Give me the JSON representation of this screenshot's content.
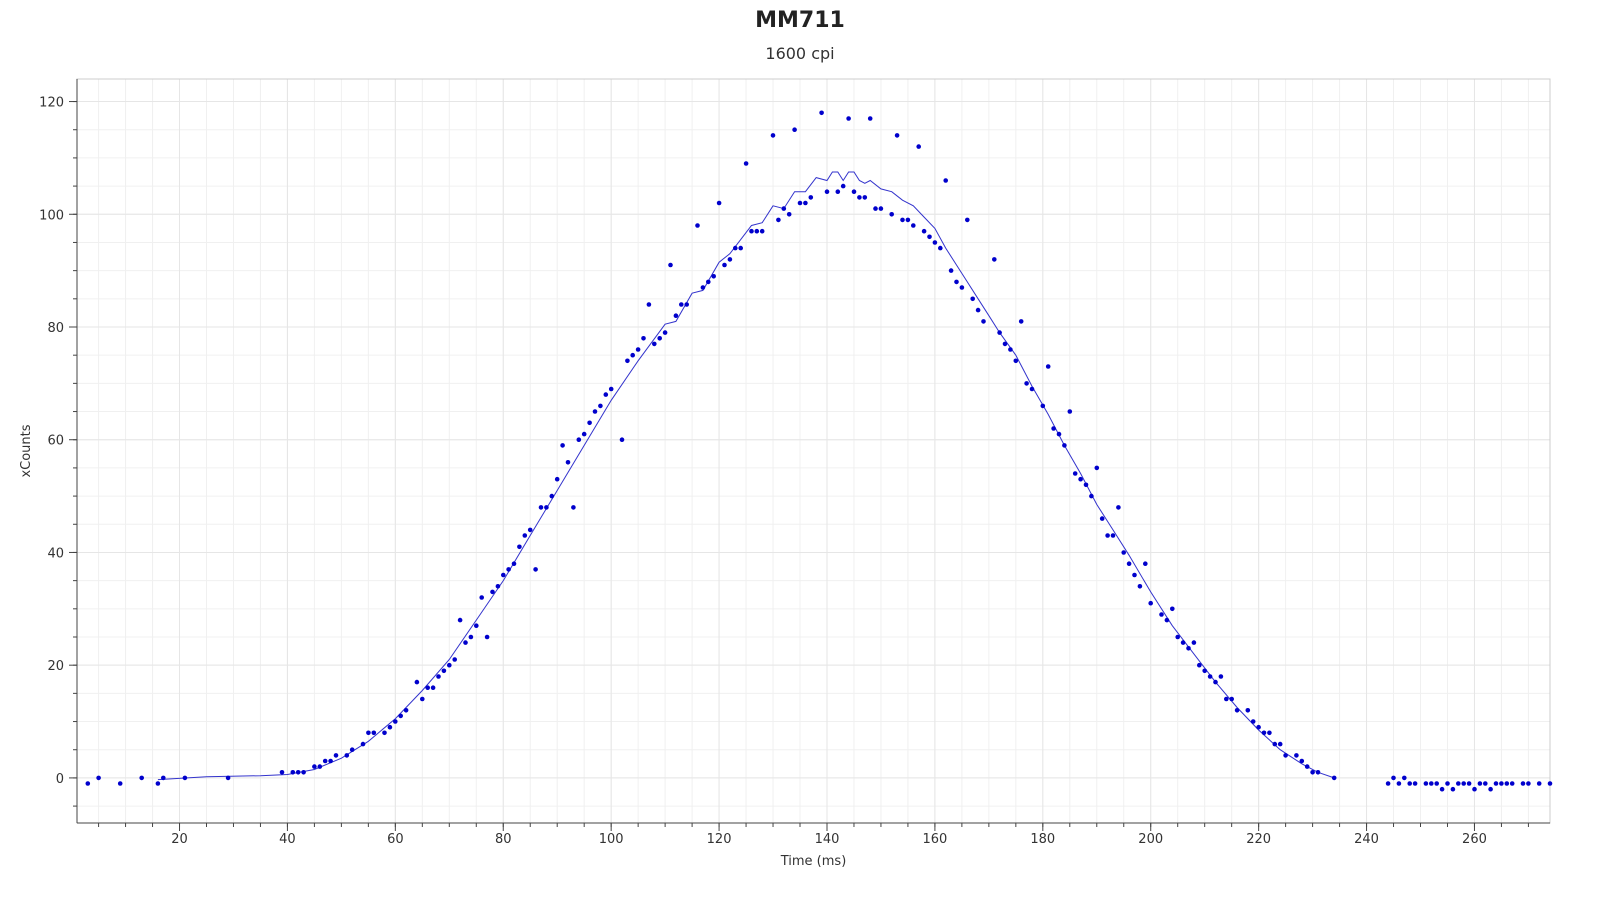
{
  "chart_data": {
    "type": "scatter",
    "title": "MM711",
    "subtitle": "1600 cpi",
    "xlabel": "Time (ms)",
    "ylabel": "xCounts",
    "xlim": [
      1,
      274
    ],
    "ylim": [
      -8,
      124
    ],
    "x_ticks": [
      20,
      40,
      60,
      80,
      100,
      120,
      140,
      160,
      180,
      200,
      220,
      240,
      260
    ],
    "y_ticks": [
      0,
      20,
      40,
      60,
      80,
      100,
      120
    ],
    "grid": true,
    "legend": "none",
    "colors": {
      "points": "#0000cc",
      "line": "#3333cc",
      "grid": "#e6e6e6",
      "axis": "#444444"
    },
    "series": [
      {
        "kind": "points",
        "points": [
          [
            3,
            -1
          ],
          [
            5,
            0
          ],
          [
            9,
            -1
          ],
          [
            13,
            0
          ],
          [
            16,
            -1
          ],
          [
            17,
            0
          ],
          [
            21,
            0
          ],
          [
            29,
            0
          ],
          [
            39,
            1
          ],
          [
            41,
            1
          ],
          [
            42,
            1
          ],
          [
            43,
            1
          ],
          [
            45,
            2
          ],
          [
            46,
            2
          ],
          [
            47,
            3
          ],
          [
            48,
            3
          ],
          [
            49,
            4
          ],
          [
            51,
            4
          ],
          [
            52,
            5
          ],
          [
            54,
            6
          ],
          [
            55,
            8
          ],
          [
            56,
            8
          ],
          [
            58,
            8
          ],
          [
            59,
            9
          ],
          [
            60,
            10
          ],
          [
            61,
            11
          ],
          [
            62,
            12
          ],
          [
            64,
            17
          ],
          [
            65,
            14
          ],
          [
            66,
            16
          ],
          [
            67,
            16
          ],
          [
            68,
            18
          ],
          [
            69,
            19
          ],
          [
            70,
            20
          ],
          [
            71,
            21
          ],
          [
            72,
            28
          ],
          [
            73,
            24
          ],
          [
            74,
            25
          ],
          [
            75,
            27
          ],
          [
            76,
            32
          ],
          [
            77,
            25
          ],
          [
            78,
            33
          ],
          [
            79,
            34
          ],
          [
            80,
            36
          ],
          [
            81,
            37
          ],
          [
            82,
            38
          ],
          [
            83,
            41
          ],
          [
            84,
            43
          ],
          [
            85,
            44
          ],
          [
            86,
            37
          ],
          [
            87,
            48
          ],
          [
            88,
            48
          ],
          [
            89,
            50
          ],
          [
            90,
            53
          ],
          [
            91,
            59
          ],
          [
            92,
            56
          ],
          [
            93,
            48
          ],
          [
            94,
            60
          ],
          [
            95,
            61
          ],
          [
            96,
            63
          ],
          [
            97,
            65
          ],
          [
            98,
            66
          ],
          [
            99,
            68
          ],
          [
            100,
            69
          ],
          [
            102,
            60
          ],
          [
            103,
            74
          ],
          [
            104,
            75
          ],
          [
            105,
            76
          ],
          [
            106,
            78
          ],
          [
            107,
            84
          ],
          [
            108,
            77
          ],
          [
            109,
            78
          ],
          [
            110,
            79
          ],
          [
            111,
            91
          ],
          [
            112,
            82
          ],
          [
            113,
            84
          ],
          [
            114,
            84
          ],
          [
            116,
            98
          ],
          [
            117,
            87
          ],
          [
            118,
            88
          ],
          [
            119,
            89
          ],
          [
            120,
            102
          ],
          [
            121,
            91
          ],
          [
            122,
            92
          ],
          [
            123,
            94
          ],
          [
            124,
            94
          ],
          [
            125,
            109
          ],
          [
            126,
            97
          ],
          [
            127,
            97
          ],
          [
            128,
            97
          ],
          [
            130,
            114
          ],
          [
            131,
            99
          ],
          [
            132,
            101
          ],
          [
            133,
            100
          ],
          [
            134,
            115
          ],
          [
            135,
            102
          ],
          [
            136,
            102
          ],
          [
            137,
            103
          ],
          [
            139,
            118
          ],
          [
            140,
            104
          ],
          [
            142,
            104
          ],
          [
            143,
            105
          ],
          [
            144,
            117
          ],
          [
            145,
            104
          ],
          [
            146,
            103
          ],
          [
            147,
            103
          ],
          [
            148,
            117
          ],
          [
            149,
            101
          ],
          [
            150,
            101
          ],
          [
            152,
            100
          ],
          [
            153,
            114
          ],
          [
            154,
            99
          ],
          [
            155,
            99
          ],
          [
            156,
            98
          ],
          [
            157,
            112
          ],
          [
            158,
            97
          ],
          [
            159,
            96
          ],
          [
            160,
            95
          ],
          [
            161,
            94
          ],
          [
            162,
            106
          ],
          [
            163,
            90
          ],
          [
            164,
            88
          ],
          [
            165,
            87
          ],
          [
            166,
            99
          ],
          [
            167,
            85
          ],
          [
            168,
            83
          ],
          [
            169,
            81
          ],
          [
            171,
            92
          ],
          [
            172,
            79
          ],
          [
            173,
            77
          ],
          [
            174,
            76
          ],
          [
            175,
            74
          ],
          [
            176,
            81
          ],
          [
            177,
            70
          ],
          [
            178,
            69
          ],
          [
            180,
            66
          ],
          [
            181,
            73
          ],
          [
            182,
            62
          ],
          [
            183,
            61
          ],
          [
            184,
            59
          ],
          [
            185,
            65
          ],
          [
            186,
            54
          ],
          [
            187,
            53
          ],
          [
            188,
            52
          ],
          [
            189,
            50
          ],
          [
            190,
            55
          ],
          [
            191,
            46
          ],
          [
            192,
            43
          ],
          [
            193,
            43
          ],
          [
            194,
            48
          ],
          [
            195,
            40
          ],
          [
            196,
            38
          ],
          [
            197,
            36
          ],
          [
            198,
            34
          ],
          [
            199,
            38
          ],
          [
            200,
            31
          ],
          [
            202,
            29
          ],
          [
            203,
            28
          ],
          [
            204,
            30
          ],
          [
            205,
            25
          ],
          [
            206,
            24
          ],
          [
            207,
            23
          ],
          [
            208,
            24
          ],
          [
            209,
            20
          ],
          [
            210,
            19
          ],
          [
            211,
            18
          ],
          [
            212,
            17
          ],
          [
            213,
            18
          ],
          [
            214,
            14
          ],
          [
            215,
            14
          ],
          [
            216,
            12
          ],
          [
            218,
            12
          ],
          [
            219,
            10
          ],
          [
            220,
            9
          ],
          [
            221,
            8
          ],
          [
            222,
            8
          ],
          [
            223,
            6
          ],
          [
            224,
            6
          ],
          [
            225,
            4
          ],
          [
            227,
            4
          ],
          [
            228,
            3
          ],
          [
            229,
            2
          ],
          [
            230,
            1
          ],
          [
            231,
            1
          ],
          [
            234,
            0
          ],
          [
            244,
            -1
          ],
          [
            245,
            0
          ],
          [
            246,
            -1
          ],
          [
            247,
            0
          ],
          [
            248,
            -1
          ],
          [
            249,
            -1
          ],
          [
            251,
            -1
          ],
          [
            252,
            -1
          ],
          [
            253,
            -1
          ],
          [
            254,
            -2
          ],
          [
            255,
            -1
          ],
          [
            256,
            -2
          ],
          [
            257,
            -1
          ],
          [
            258,
            -1
          ],
          [
            259,
            -1
          ],
          [
            260,
            -2
          ],
          [
            261,
            -1
          ],
          [
            262,
            -1
          ],
          [
            263,
            -2
          ],
          [
            264,
            -1
          ],
          [
            265,
            -1
          ],
          [
            266,
            -1
          ],
          [
            267,
            -1
          ],
          [
            269,
            -1
          ],
          [
            270,
            -1
          ],
          [
            272,
            -1
          ],
          [
            274,
            -1
          ]
        ]
      },
      {
        "kind": "line",
        "points": [
          [
            16,
            -0.3
          ],
          [
            25,
            0.2
          ],
          [
            35,
            0.4
          ],
          [
            40,
            0.6
          ],
          [
            45,
            1.5
          ],
          [
            50,
            3.5
          ],
          [
            55,
            6.5
          ],
          [
            60,
            10.5
          ],
          [
            65,
            15.5
          ],
          [
            70,
            21
          ],
          [
            75,
            28
          ],
          [
            80,
            35
          ],
          [
            85,
            43
          ],
          [
            90,
            51
          ],
          [
            95,
            59
          ],
          [
            100,
            67
          ],
          [
            105,
            74
          ],
          [
            110,
            80.5
          ],
          [
            112,
            81
          ],
          [
            115,
            86
          ],
          [
            117,
            86.5
          ],
          [
            120,
            91.5
          ],
          [
            122,
            93
          ],
          [
            124,
            95.5
          ],
          [
            126,
            98
          ],
          [
            128,
            98.5
          ],
          [
            130,
            101.5
          ],
          [
            132,
            101
          ],
          [
            134,
            104
          ],
          [
            136,
            104
          ],
          [
            138,
            106.5
          ],
          [
            140,
            106
          ],
          [
            141,
            107.5
          ],
          [
            142,
            107.5
          ],
          [
            143,
            106
          ],
          [
            144,
            107.5
          ],
          [
            145,
            107.5
          ],
          [
            146,
            106
          ],
          [
            147,
            105.5
          ],
          [
            148,
            106
          ],
          [
            150,
            104.5
          ],
          [
            152,
            104
          ],
          [
            154,
            102.5
          ],
          [
            156,
            101.5
          ],
          [
            158,
            99.5
          ],
          [
            160,
            97.5
          ],
          [
            162,
            94
          ],
          [
            164,
            91
          ],
          [
            166,
            88
          ],
          [
            168,
            85
          ],
          [
            170,
            82
          ],
          [
            172,
            79
          ],
          [
            175,
            75
          ],
          [
            178,
            69.5
          ],
          [
            181,
            64.5
          ],
          [
            184,
            59
          ],
          [
            187,
            54
          ],
          [
            190,
            48.5
          ],
          [
            193,
            44
          ],
          [
            196,
            39.5
          ],
          [
            200,
            33
          ],
          [
            204,
            27
          ],
          [
            208,
            22
          ],
          [
            212,
            17
          ],
          [
            216,
            12.5
          ],
          [
            220,
            8.5
          ],
          [
            224,
            5
          ],
          [
            228,
            2.5
          ],
          [
            231,
            1
          ],
          [
            234,
            0
          ]
        ]
      }
    ]
  }
}
